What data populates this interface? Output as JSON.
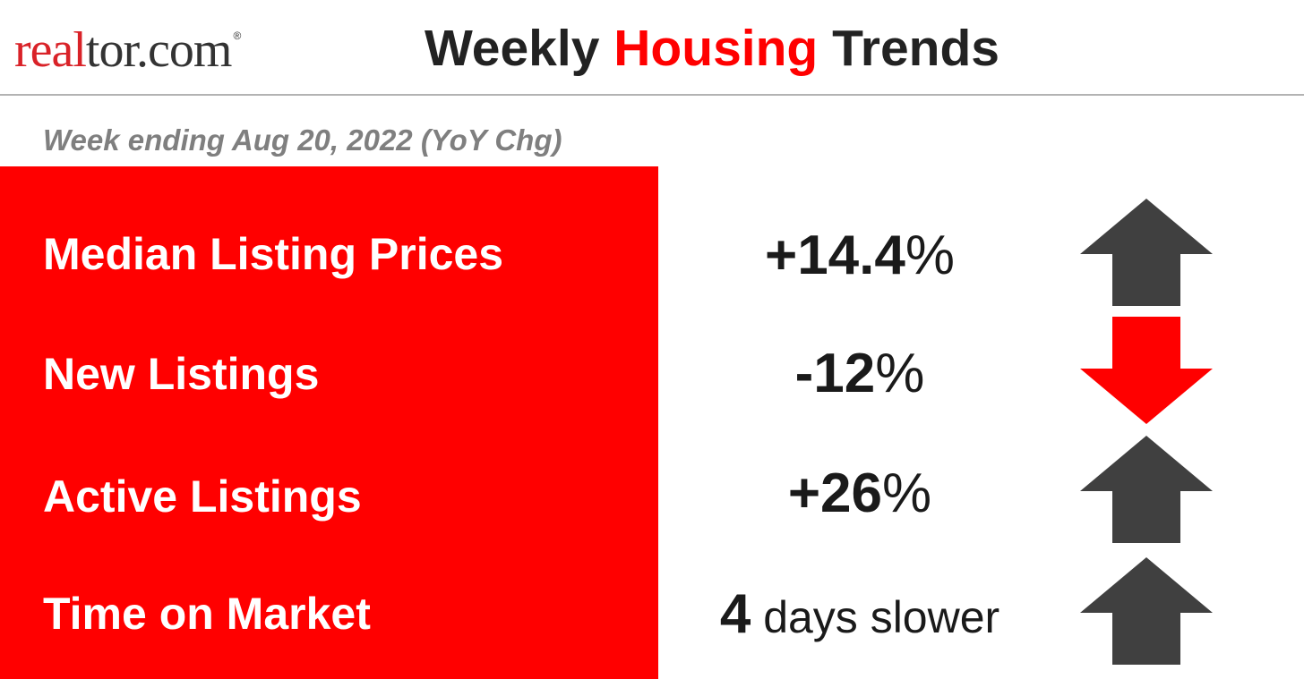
{
  "header": {
    "logo_part1": "real",
    "logo_part2": "tor.com",
    "logo_mark": "®",
    "title_pre": "Weekly ",
    "title_accent": "Housing",
    "title_post": " Trends"
  },
  "subtitle": "Week ending Aug 20, 2022 (YoY Chg)",
  "colors": {
    "accent": "#ff0000",
    "arrow_up": "#404040",
    "arrow_down": "#ff0000",
    "text": "#222222",
    "subtitle": "#7f7f7f"
  },
  "metrics": [
    {
      "label": "Median Listing Prices",
      "value_num": "+14.4",
      "value_unit": "%",
      "direction": "up",
      "icon": "arrow-up-icon"
    },
    {
      "label": "New Listings",
      "value_num": "-12",
      "value_unit": "%",
      "direction": "down",
      "icon": "arrow-down-icon"
    },
    {
      "label": "Active Listings",
      "value_num": "+26",
      "value_unit": "%",
      "direction": "up",
      "icon": "arrow-up-icon"
    },
    {
      "label": "Time on Market",
      "value_num": "4",
      "value_unit": " days slower",
      "direction": "up",
      "icon": "arrow-up-icon"
    }
  ]
}
